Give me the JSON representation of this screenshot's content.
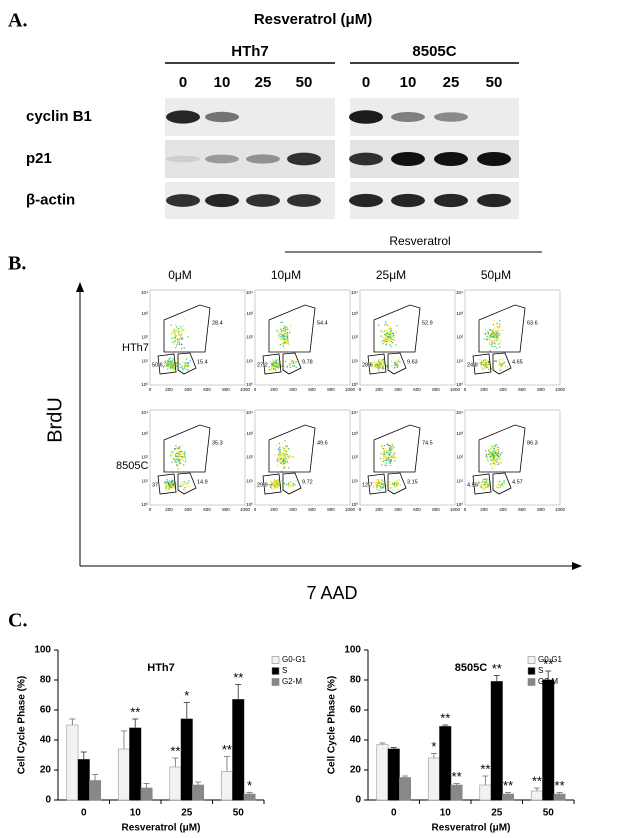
{
  "panel_a": {
    "label": "A.",
    "title": "Resveratrol (μM)",
    "cell_lines": [
      "HTh7",
      "8505C"
    ],
    "doses": [
      "0",
      "10",
      "25",
      "50"
    ],
    "proteins": [
      "cyclin B1",
      "p21",
      "β-actin"
    ]
  },
  "panel_b": {
    "label": "B.",
    "treatment": "Resveratrol",
    "doses": [
      "0μM",
      "10μM",
      "25μM",
      "50μM"
    ],
    "y_axis": "BrdU",
    "x_axis": "7 AAD",
    "plot_yticks": [
      "10⁰",
      "10¹",
      "10²",
      "10³",
      "10⁴"
    ],
    "plot_xticks": [
      "0",
      "200",
      "400",
      "600",
      "800",
      "1000"
    ],
    "rows": [
      {
        "name": "HTh7",
        "gates": [
          [
            "28.4",
            "50.6",
            "15.4"
          ],
          [
            "54.4",
            "27.2",
            "9.78"
          ],
          [
            "52.9",
            "28.6",
            "9.63"
          ],
          [
            "63.6",
            "24.8",
            "4.65"
          ]
        ]
      },
      {
        "name": "8505C",
        "gates": [
          [
            "35.3",
            "37",
            "14.9"
          ],
          [
            "49.6",
            "29.9",
            "9.72"
          ],
          [
            "74.5",
            "12.7",
            "3.15"
          ],
          [
            "86.3",
            "4.59",
            "4.57"
          ]
        ]
      }
    ]
  },
  "panel_c_label": "C.",
  "chart_data": [
    {
      "type": "bar",
      "title": "HTh7",
      "ylabel": "Cell Cycle Phase (%)",
      "xlabel": "Resveratrol (μM)",
      "categories": [
        "0",
        "10",
        "25",
        "50"
      ],
      "ylim": [
        0,
        100
      ],
      "yticks": [
        0,
        20,
        40,
        60,
        80,
        100
      ],
      "legend": "upper right",
      "series": [
        {
          "name": "G0-G1",
          "color": "#f2f2f2",
          "values": [
            50,
            34,
            22,
            19
          ],
          "errors": [
            4,
            12,
            6,
            10
          ],
          "significance": [
            null,
            null,
            "**",
            "**"
          ]
        },
        {
          "name": "S",
          "color": "#000000",
          "values": [
            27,
            48,
            54,
            67
          ],
          "errors": [
            5,
            6,
            11,
            10
          ],
          "significance": [
            null,
            "**",
            "*",
            "**"
          ]
        },
        {
          "name": "G2-M",
          "color": "#888888",
          "values": [
            13,
            8,
            10,
            4
          ],
          "errors": [
            4,
            3,
            2,
            1
          ],
          "significance": [
            null,
            null,
            null,
            "*"
          ]
        }
      ]
    },
    {
      "type": "bar",
      "title": "8505C",
      "ylabel": "Cell Cycle Phase (%)",
      "xlabel": "Resveratrol (μM)",
      "categories": [
        "0",
        "10",
        "25",
        "50"
      ],
      "ylim": [
        0,
        100
      ],
      "yticks": [
        0,
        20,
        40,
        60,
        80,
        100
      ],
      "legend": "upper right",
      "series": [
        {
          "name": "G0-G1",
          "color": "#f2f2f2",
          "values": [
            37,
            28,
            10,
            6
          ],
          "errors": [
            1,
            3,
            6,
            2
          ],
          "significance": [
            null,
            "*",
            "**",
            "**"
          ]
        },
        {
          "name": "S",
          "color": "#000000",
          "values": [
            34,
            49,
            79,
            80
          ],
          "errors": [
            1,
            1,
            4,
            6
          ],
          "significance": [
            null,
            "**",
            "**",
            "**"
          ]
        },
        {
          "name": "G2-M",
          "color": "#888888",
          "values": [
            15,
            10,
            4,
            4
          ],
          "errors": [
            1,
            1,
            1,
            1
          ],
          "significance": [
            null,
            "**",
            "**",
            "**"
          ]
        }
      ]
    }
  ]
}
